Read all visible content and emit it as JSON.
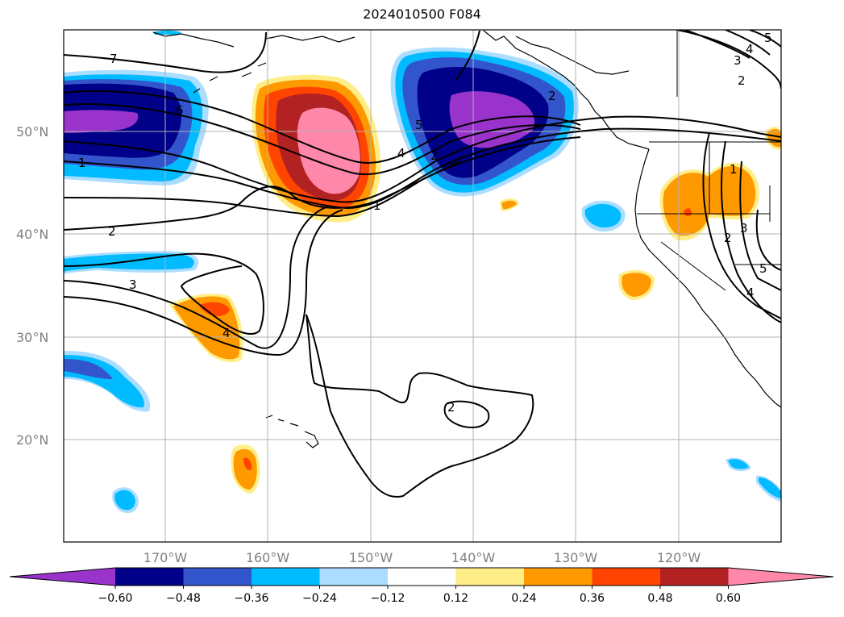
{
  "title": "2024010500 F084",
  "lat_labels": [
    "50°N",
    "40°N",
    "30°N",
    "20°N"
  ],
  "lon_labels": [
    "170°W",
    "160°W",
    "150°W",
    "140°W",
    "130°W",
    "120°W"
  ],
  "colorbar": {
    "tick_labels": [
      "−0.60",
      "−0.48",
      "−0.36",
      "−0.24",
      "−0.12",
      "0.12",
      "0.24",
      "0.36",
      "0.48",
      "0.60"
    ],
    "colors": [
      "#9933cc",
      "#000088",
      "#3355cc",
      "#00bbff",
      "#aaddff",
      "#ffffff",
      "#ffee88",
      "#ff9900",
      "#ff4400",
      "#b22222",
      "#ff88aa"
    ]
  },
  "contour_labels": [
    "7",
    "6",
    "1",
    "2",
    "3",
    "4",
    "1",
    "4",
    "5",
    "2",
    "5",
    "4",
    "3",
    "2",
    "2",
    "2",
    "3",
    "4",
    "5",
    "1",
    "2"
  ],
  "fill_colors": {
    "purple": "#9933cc",
    "navy": "#000088",
    "blue": "#3355cc",
    "cyan": "#00bbff",
    "lightblue": "#aaddff",
    "yellow": "#ffee88",
    "orange": "#ff9900",
    "redorange": "#ff4400",
    "darkred": "#b22222",
    "pink": "#ff88aa"
  }
}
